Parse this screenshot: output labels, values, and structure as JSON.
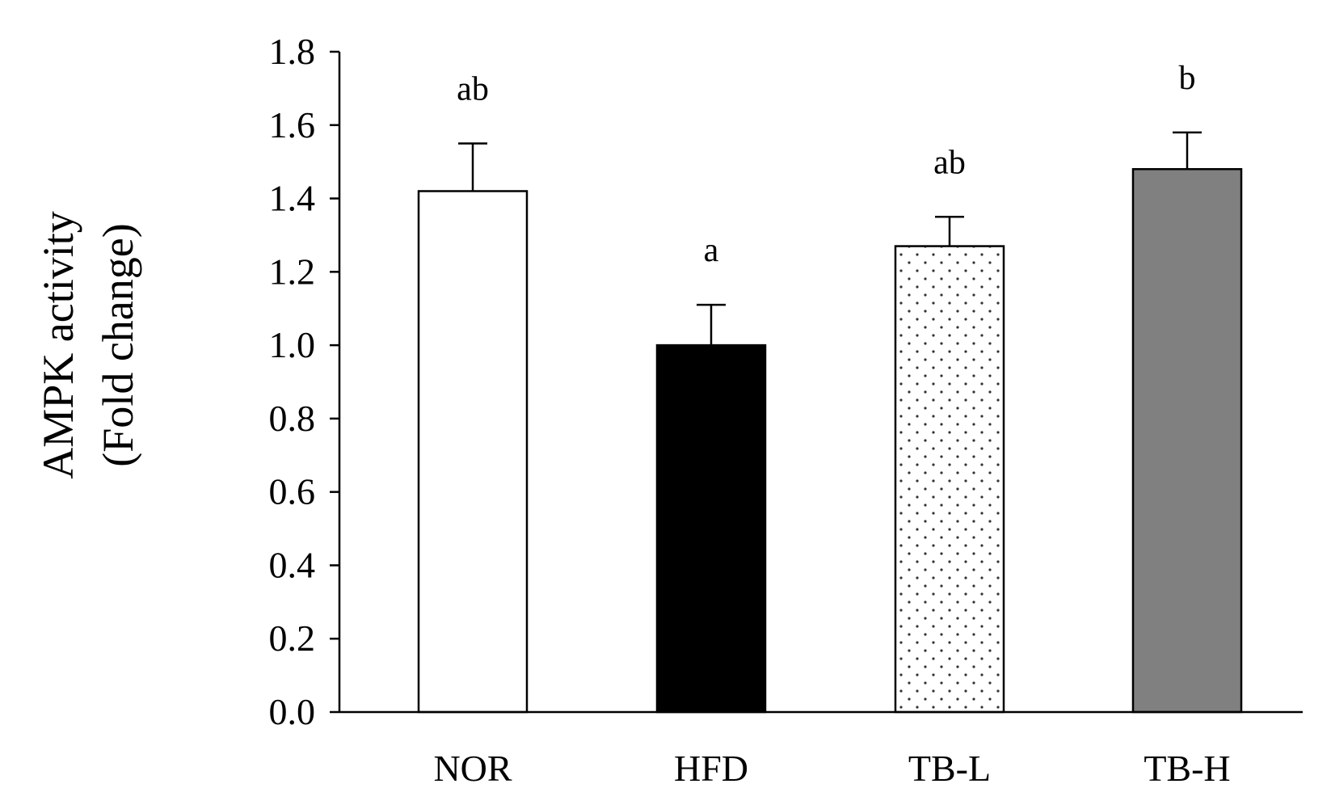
{
  "chart_data": {
    "type": "bar",
    "title": "",
    "xlabel": "",
    "ylabel_lines": [
      "AMPK activity",
      "(Fold change)"
    ],
    "categories": [
      "NOR",
      "HFD",
      "TB-L",
      "TB-H"
    ],
    "values": [
      1.42,
      1.0,
      1.27,
      1.48
    ],
    "errors": [
      0.13,
      0.11,
      0.08,
      0.1
    ],
    "significance": [
      "ab",
      "a",
      "ab",
      "b"
    ],
    "fills": [
      "white",
      "black",
      "dotted",
      "gray"
    ],
    "colors": {
      "white": "#ffffff",
      "black": "#000000",
      "gray": "#808080",
      "dot": "#333333"
    },
    "ylim": [
      0,
      1.8
    ],
    "yticks": [
      "0.0",
      "0.2",
      "0.4",
      "0.6",
      "0.8",
      "1.0",
      "1.2",
      "1.4",
      "1.6",
      "1.8"
    ],
    "grid": false,
    "legend": "none"
  }
}
